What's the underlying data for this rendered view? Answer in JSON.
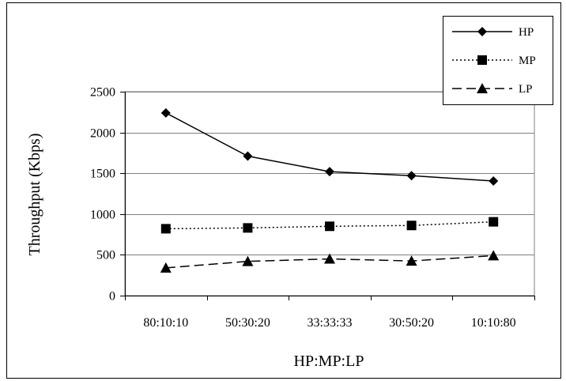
{
  "chart_data": {
    "type": "line",
    "xlabel": "HP:MP:LP",
    "ylabel": "Throughput (Kbps)",
    "categories": [
      "80:10:10",
      "50:30:20",
      "33:33:33",
      "30:50:20",
      "10:10:80"
    ],
    "ylim": [
      0,
      2500
    ],
    "yticks": [
      0,
      500,
      1000,
      1500,
      2000,
      2500
    ],
    "grid": true,
    "legend_position": "top-right",
    "series": [
      {
        "name": "HP",
        "marker": "diamond",
        "line": "solid",
        "values": [
          2240,
          1710,
          1520,
          1470,
          1405
        ]
      },
      {
        "name": "MP",
        "marker": "square",
        "line": "dotted",
        "values": [
          820,
          830,
          850,
          860,
          905
        ]
      },
      {
        "name": "LP",
        "marker": "triangle",
        "line": "dashed",
        "values": [
          340,
          420,
          450,
          425,
          490
        ]
      }
    ]
  }
}
